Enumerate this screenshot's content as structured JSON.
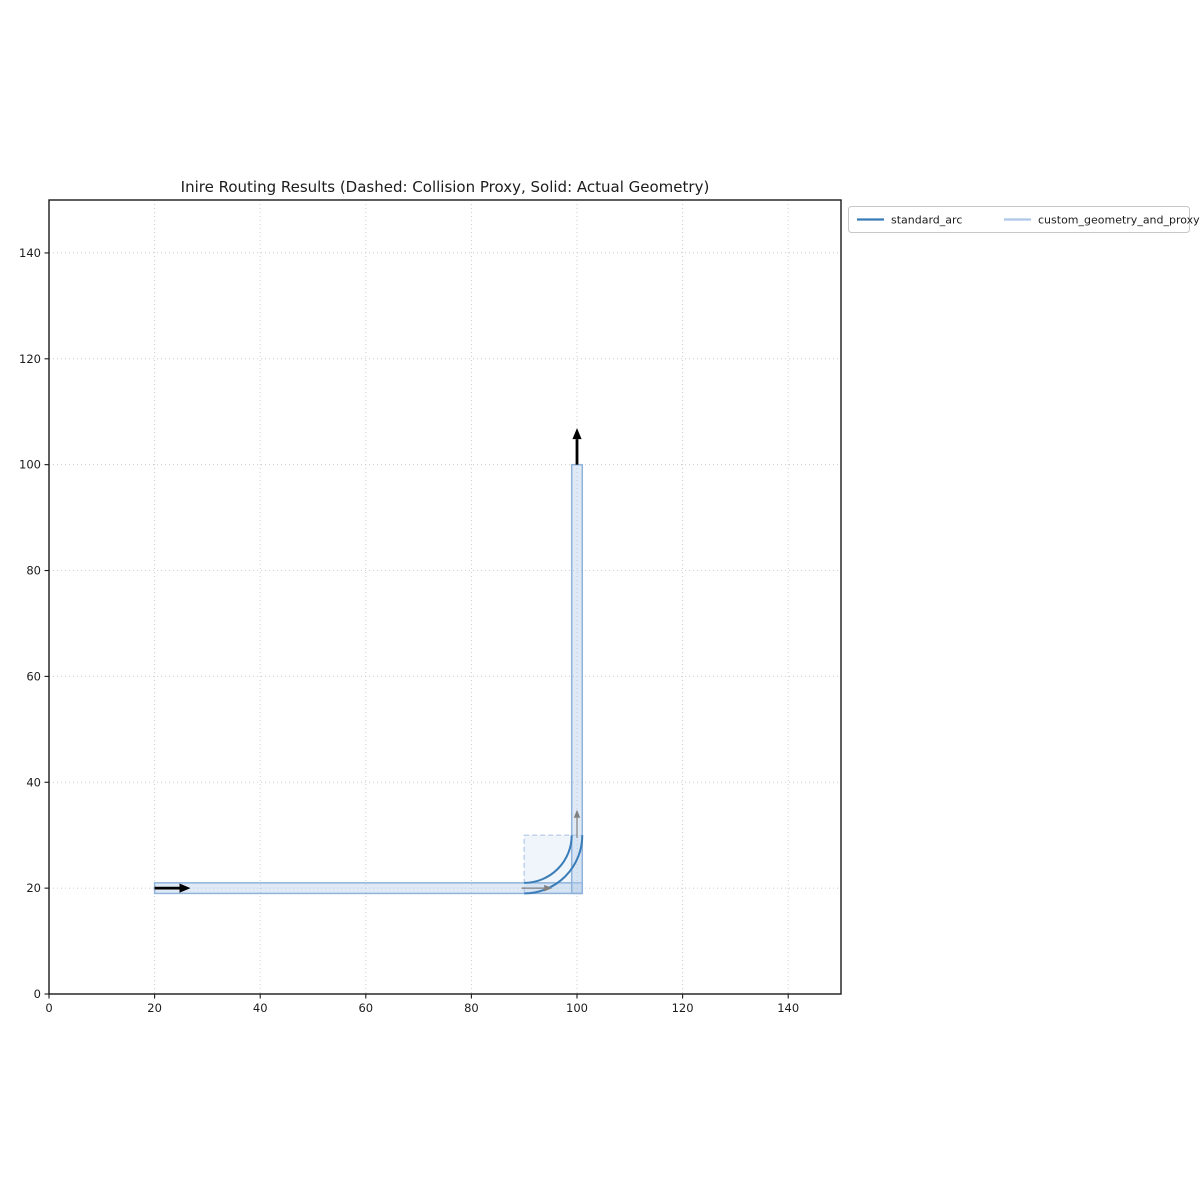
{
  "figure": {
    "background": "#ffffff"
  },
  "chart_data": {
    "type": "line",
    "title": "Inire Routing Results (Dashed: Collision Proxy, Solid: Actual Geometry)",
    "xlabel": "",
    "ylabel": "",
    "xlim": [
      0,
      150
    ],
    "ylim": [
      0,
      150
    ],
    "xticks": [
      0,
      20,
      40,
      60,
      80,
      100,
      120,
      140
    ],
    "yticks": [
      0,
      20,
      40,
      60,
      80,
      100,
      120,
      140
    ],
    "grid": "dotted",
    "legend": {
      "position": "outside-top-right",
      "entries": [
        {
          "label": "standard_arc",
          "color": "#3a7cb8",
          "style": "solid"
        },
        {
          "label": "custom_geometry_and_proxy",
          "color": "#aec7e8",
          "style": "solid"
        }
      ]
    },
    "route": {
      "start": {
        "point": [
          20,
          20
        ],
        "direction": "east"
      },
      "end": {
        "point": [
          100,
          100
        ],
        "direction": "north"
      },
      "path_half_width": 1,
      "corner_arc": {
        "center": [
          90,
          30
        ],
        "radius": 10,
        "inner_radius": 9,
        "outer_radius": 11,
        "from_point": [
          90,
          20
        ],
        "to_point": [
          100,
          30
        ]
      },
      "bands": {
        "horizontal": {
          "x": [
            20,
            101
          ],
          "y": [
            19,
            21
          ]
        },
        "vertical": {
          "x": [
            99,
            101
          ],
          "y": [
            19,
            100
          ]
        }
      },
      "collision_proxy_rect": {
        "x": [
          90,
          101
        ],
        "y": [
          19,
          30
        ]
      },
      "tangent_arrows": [
        {
          "from": [
            89.5,
            20
          ],
          "to": [
            95.3,
            20
          ]
        },
        {
          "from": [
            100,
            29.5
          ],
          "to": [
            100,
            34.8
          ]
        }
      ],
      "endpoint_arrows": [
        {
          "from": [
            20,
            20
          ],
          "to": [
            26.8,
            20
          ]
        },
        {
          "from": [
            100,
            100
          ],
          "to": [
            100,
            106.9
          ]
        }
      ],
      "colors": {
        "standard_arc": "#3a7cb8",
        "custom_geometry": "#aec7e8",
        "band_stroke": "#8fb3da",
        "tangent_arrow": "#7f7f7f",
        "endpoint_arrow": "#000000"
      }
    },
    "axes_style": {
      "grid_color": "#cccccc",
      "spine_color": "#1a1a1a",
      "text_color": "#1c1c1c"
    }
  }
}
